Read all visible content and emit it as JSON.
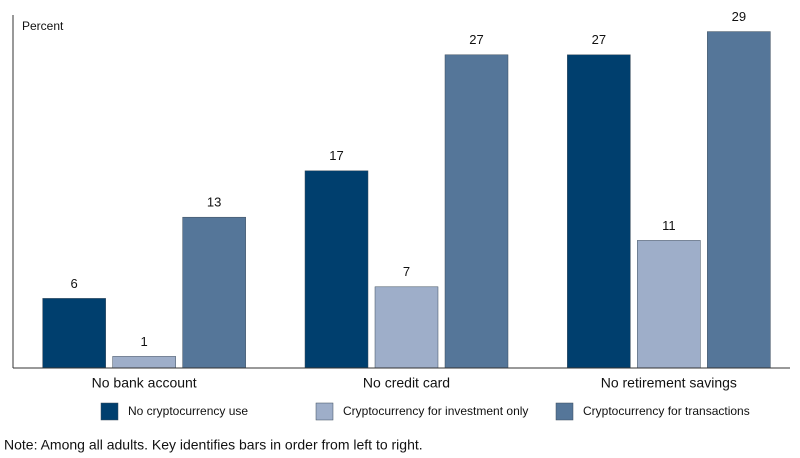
{
  "chart_data": {
    "type": "bar",
    "y_label": "Percent",
    "categories": [
      "No bank account",
      "No credit card",
      "No retirement savings"
    ],
    "series": [
      {
        "name": "No cryptocurrency use",
        "color": "#003f6e",
        "values": [
          6,
          17,
          27
        ]
      },
      {
        "name": "Cryptocurrency for investment only",
        "color": "#9eaec9",
        "values": [
          1,
          7,
          11
        ]
      },
      {
        "name": "Cryptocurrency for transactions",
        "color": "#557699",
        "values": [
          13,
          27,
          29
        ]
      }
    ],
    "ylim": [
      0,
      30
    ],
    "note": "Note:  Among all adults. Key identifies bars in order from left to right."
  }
}
